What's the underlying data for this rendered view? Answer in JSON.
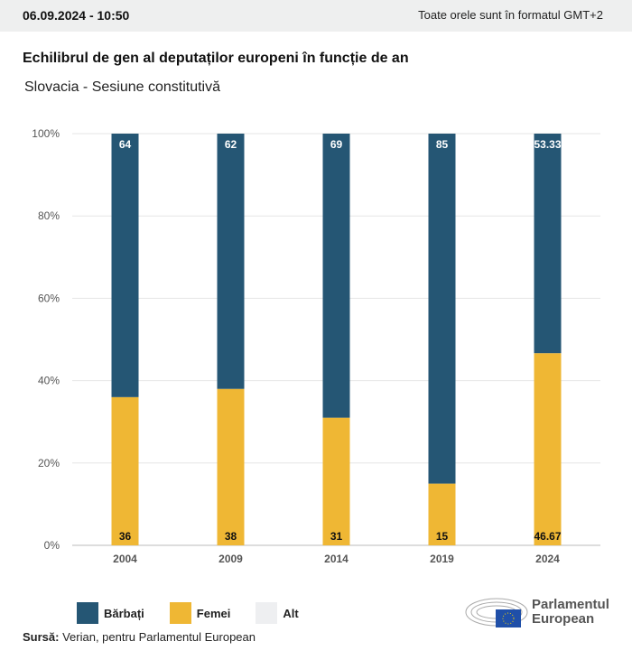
{
  "header": {
    "date": "06.09.2024 - 10:50",
    "timezone": "Toate orele sunt în formatul GMT+2"
  },
  "chart_data": {
    "type": "bar",
    "stacked": true,
    "title": "Echilibrul de gen al deputaților europeni în funcție de an",
    "subtitle": "Slovacia - Sesiune constitutivă",
    "categories": [
      "2004",
      "2009",
      "2014",
      "2019",
      "2024"
    ],
    "series": [
      {
        "name": "Femei",
        "color": "#efb734",
        "values": [
          36,
          38,
          31,
          15,
          46.67
        ]
      },
      {
        "name": "Bărbați",
        "color": "#255674",
        "values": [
          64,
          62,
          69,
          85,
          53.33
        ]
      },
      {
        "name": "Alt",
        "color": "#eeeff1",
        "values": [
          0,
          0,
          0,
          0,
          0
        ]
      }
    ],
    "yticks": [
      "0%",
      "20%",
      "40%",
      "60%",
      "80%",
      "100%"
    ],
    "ylim": [
      0,
      100
    ],
    "grid": true,
    "legend": "bottom-left"
  },
  "legend": [
    {
      "label": "Bărbați",
      "color": "#255674"
    },
    {
      "label": "Femei",
      "color": "#efb734"
    },
    {
      "label": "Alt",
      "color": "#eeeff1"
    }
  ],
  "source": {
    "label": "Sursă:",
    "text": " Verian, pentru Parlamentul European"
  },
  "logo": {
    "line1": "Parlamentul",
    "line2": "European"
  }
}
